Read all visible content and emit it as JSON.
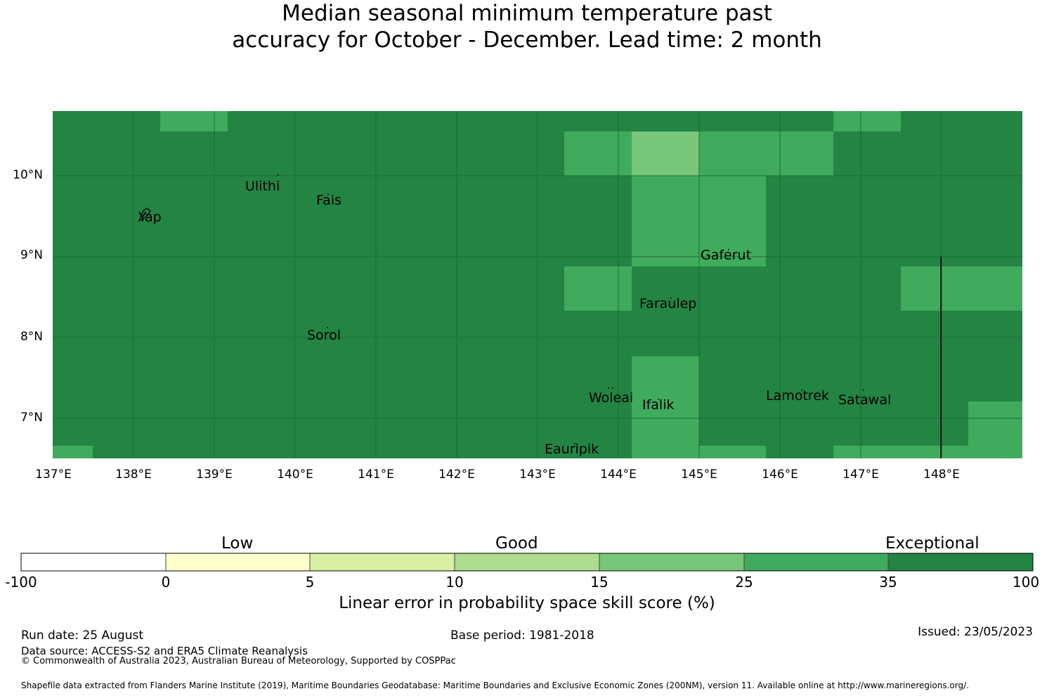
{
  "title_line1": "Median seasonal minimum temperature past",
  "title_line2": "accuracy for October - December. Lead time: 2 month",
  "map": {
    "lon_labels": [
      "137°E",
      "138°E",
      "139°E",
      "140°E",
      "141°E",
      "142°E",
      "143°E",
      "144°E",
      "145°E",
      "146°E",
      "147°E",
      "148°E"
    ],
    "lat_labels": [
      "10°N",
      "9°N",
      "8°N",
      "7°N"
    ],
    "places": [
      "Ulithi",
      "Fais",
      "Yap",
      "Gaferut",
      "Faraulep",
      "Sorol",
      "Woleai",
      "Ifalik",
      "Lamotrek",
      "Satawal",
      "Eauripik"
    ],
    "colors": {
      "exceptional": "#238443",
      "very_good": "#41ab5d",
      "good_high": "#78c679",
      "gridline": "#1a6d35"
    }
  },
  "colorbar": {
    "categories": [
      "Low",
      "Good",
      "Exceptional"
    ],
    "ticks": [
      "-100",
      "0",
      "5",
      "10",
      "15",
      "25",
      "35",
      "100"
    ],
    "colors": [
      "#ffffff",
      "#ffffcc",
      "#d9f0a3",
      "#addd8e",
      "#78c679",
      "#41ab5d",
      "#238443"
    ],
    "label": "Linear error in probability space skill score (%)"
  },
  "footer": {
    "run_date": "Run date: 25 August",
    "base_period": "Base period: 1981-2018",
    "issued": "Issued: 23/05/2023",
    "data_source": "Data source: ACCESS-S2 and ERA5 Climate Reanalysis",
    "copyright": "© Commonwealth of Australia 2023, Australian Bureau of Meteorology, Supported by COSPPac",
    "shapefile": "Shapefile data extracted from Flanders Marine Institute (2019), Maritime Boundaries Geodatabase: Maritime Boundaries and Exclusive Economic Zones (200NM), version 11. Available online at http://www.marineregions.org/."
  }
}
